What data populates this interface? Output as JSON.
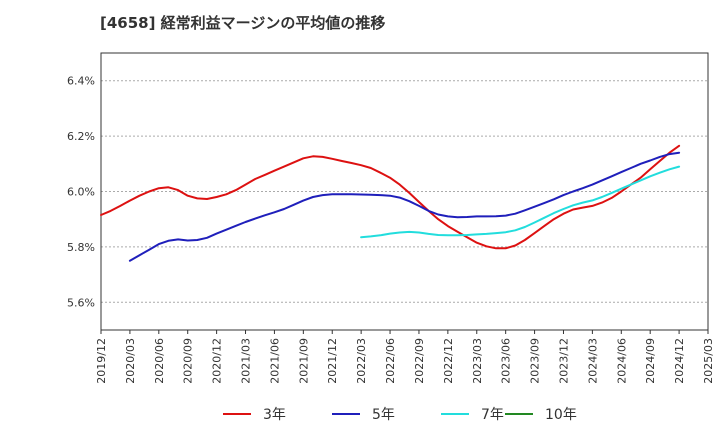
{
  "chart_data": {
    "type": "line",
    "title": "[4658]  経常利益マージンの平均値の推移",
    "xlabel": "",
    "ylabel": "",
    "x_ticks": [
      "2019/12",
      "2020/03",
      "2020/06",
      "2020/09",
      "2020/12",
      "2021/03",
      "2021/06",
      "2021/09",
      "2021/12",
      "2022/03",
      "2022/06",
      "2022/09",
      "2022/12",
      "2023/03",
      "2023/06",
      "2023/09",
      "2023/12",
      "2024/03",
      "2024/06",
      "2024/09",
      "2024/12",
      "2025/03"
    ],
    "y_ticks": [
      5.6,
      5.8,
      6.0,
      6.2,
      6.4
    ],
    "y_tick_labels": [
      "5.6%",
      "5.8%",
      "6.0%",
      "6.2%",
      "6.4%"
    ],
    "ylim": [
      5.5,
      6.5
    ],
    "grid": true,
    "legend_position": "bottom",
    "series": [
      {
        "name": "3年",
        "color": "#dd1111",
        "x": [
          "2019/12",
          "2020/01",
          "2020/02",
          "2020/03",
          "2020/04",
          "2020/05",
          "2020/06",
          "2020/07",
          "2020/08",
          "2020/09",
          "2020/10",
          "2020/11",
          "2020/12",
          "2021/01",
          "2021/02",
          "2021/03",
          "2021/04",
          "2021/05",
          "2021/06",
          "2021/07",
          "2021/08",
          "2021/09",
          "2021/10",
          "2021/11",
          "2021/12",
          "2022/01",
          "2022/02",
          "2022/03",
          "2022/04",
          "2022/05",
          "2022/06",
          "2022/07",
          "2022/08",
          "2022/09",
          "2022/10",
          "2022/11",
          "2022/12",
          "2023/01",
          "2023/02",
          "2023/03",
          "2023/04",
          "2023/05",
          "2023/06",
          "2023/07",
          "2023/08",
          "2023/09",
          "2023/10",
          "2023/11",
          "2023/12",
          "2024/01",
          "2024/02",
          "2024/03",
          "2024/04",
          "2024/05",
          "2024/06",
          "2024/07",
          "2024/08",
          "2024/09",
          "2024/10",
          "2024/11",
          "2024/12"
        ],
        "y": [
          5.915,
          5.93,
          5.948,
          5.967,
          5.985,
          6.0,
          6.012,
          6.015,
          6.005,
          5.985,
          5.975,
          5.973,
          5.98,
          5.99,
          6.005,
          6.025,
          6.045,
          6.06,
          6.075,
          6.09,
          6.105,
          6.12,
          6.127,
          6.125,
          6.118,
          6.11,
          6.103,
          6.095,
          6.085,
          6.068,
          6.05,
          6.025,
          5.995,
          5.962,
          5.93,
          5.9,
          5.875,
          5.855,
          5.835,
          5.815,
          5.802,
          5.795,
          5.795,
          5.805,
          5.825,
          5.85,
          5.875,
          5.9,
          5.92,
          5.935,
          5.942,
          5.948,
          5.96,
          5.977,
          6.0,
          6.025,
          6.05,
          6.08,
          6.11,
          6.14,
          6.165
        ]
      },
      {
        "name": "5年",
        "color": "#1f1fbb",
        "x": [
          "2020/03",
          "2020/04",
          "2020/05",
          "2020/06",
          "2020/07",
          "2020/08",
          "2020/09",
          "2020/10",
          "2020/11",
          "2020/12",
          "2021/01",
          "2021/02",
          "2021/03",
          "2021/04",
          "2021/05",
          "2021/06",
          "2021/07",
          "2021/08",
          "2021/09",
          "2021/10",
          "2021/11",
          "2021/12",
          "2022/01",
          "2022/02",
          "2022/03",
          "2022/04",
          "2022/05",
          "2022/06",
          "2022/07",
          "2022/08",
          "2022/09",
          "2022/10",
          "2022/11",
          "2022/12",
          "2023/01",
          "2023/02",
          "2023/03",
          "2023/04",
          "2023/05",
          "2023/06",
          "2023/07",
          "2023/08",
          "2023/09",
          "2023/10",
          "2023/11",
          "2023/12",
          "2024/01",
          "2024/02",
          "2024/03",
          "2024/04",
          "2024/05",
          "2024/06",
          "2024/07",
          "2024/08",
          "2024/09",
          "2024/10",
          "2024/11",
          "2024/12"
        ],
        "y": [
          5.75,
          5.77,
          5.79,
          5.81,
          5.822,
          5.827,
          5.823,
          5.825,
          5.833,
          5.848,
          5.862,
          5.876,
          5.89,
          5.902,
          5.914,
          5.925,
          5.937,
          5.952,
          5.967,
          5.98,
          5.987,
          5.99,
          5.99,
          5.99,
          5.989,
          5.988,
          5.987,
          5.985,
          5.978,
          5.965,
          5.948,
          5.93,
          5.917,
          5.91,
          5.907,
          5.908,
          5.91,
          5.91,
          5.911,
          5.913,
          5.92,
          5.932,
          5.945,
          5.958,
          5.972,
          5.987,
          6.0,
          6.012,
          6.025,
          6.04,
          6.055,
          6.07,
          6.085,
          6.1,
          6.112,
          6.125,
          6.135,
          6.14
        ]
      },
      {
        "name": "7年",
        "color": "#22dddd",
        "x": [
          "2022/03",
          "2022/04",
          "2022/05",
          "2022/06",
          "2022/07",
          "2022/08",
          "2022/09",
          "2022/10",
          "2022/11",
          "2022/12",
          "2023/01",
          "2023/02",
          "2023/03",
          "2023/04",
          "2023/05",
          "2023/06",
          "2023/07",
          "2023/08",
          "2023/09",
          "2023/10",
          "2023/11",
          "2023/12",
          "2024/01",
          "2024/02",
          "2024/03",
          "2024/04",
          "2024/05",
          "2024/06",
          "2024/07",
          "2024/08",
          "2024/09",
          "2024/10",
          "2024/11",
          "2024/12"
        ],
        "y": [
          5.835,
          5.838,
          5.842,
          5.848,
          5.852,
          5.854,
          5.852,
          5.847,
          5.843,
          5.842,
          5.842,
          5.843,
          5.845,
          5.847,
          5.85,
          5.853,
          5.86,
          5.872,
          5.888,
          5.905,
          5.922,
          5.937,
          5.95,
          5.96,
          5.968,
          5.98,
          5.995,
          6.01,
          6.025,
          6.04,
          6.055,
          6.068,
          6.08,
          6.09
        ]
      },
      {
        "name": "10年",
        "color": "#228822",
        "x": [],
        "y": []
      }
    ]
  }
}
